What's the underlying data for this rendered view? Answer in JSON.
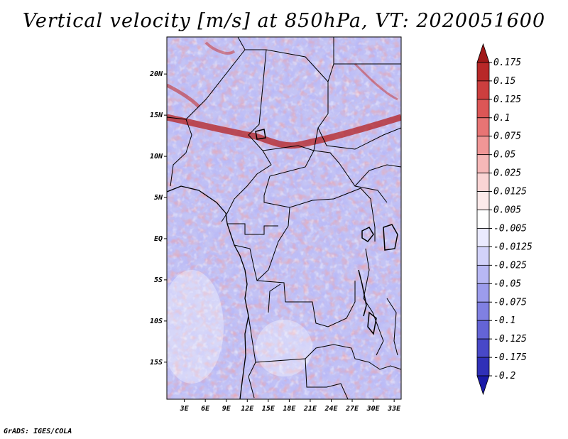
{
  "title": "Vertical velocity [m/s] at 850hPa, VT: 2020051600",
  "footer": "GrADS: IGES/COLA",
  "map": {
    "lat_range": [
      -19.5,
      24.5
    ],
    "lon_range": [
      0.5,
      34.0
    ],
    "lat_ticks": [
      {
        "value": 20,
        "label": "20N"
      },
      {
        "value": 15,
        "label": "15N"
      },
      {
        "value": 10,
        "label": "10N"
      },
      {
        "value": 5,
        "label": "5N"
      },
      {
        "value": 0,
        "label": "EQ"
      },
      {
        "value": -5,
        "label": "5S"
      },
      {
        "value": -10,
        "label": "10S"
      },
      {
        "value": -15,
        "label": "15S"
      }
    ],
    "lon_ticks": [
      {
        "value": 3,
        "label": "3E"
      },
      {
        "value": 6,
        "label": "6E"
      },
      {
        "value": 9,
        "label": "9E"
      },
      {
        "value": 12,
        "label": "12E"
      },
      {
        "value": 15,
        "label": "15E"
      },
      {
        "value": 18,
        "label": "18E"
      },
      {
        "value": 21,
        "label": "21E"
      },
      {
        "value": 24,
        "label": "24E"
      },
      {
        "value": 27,
        "label": "27E"
      },
      {
        "value": 30,
        "label": "30E"
      },
      {
        "value": 33,
        "label": "33E"
      }
    ]
  },
  "colorbar": {
    "labels": [
      "0.175",
      "0.15",
      "0.125",
      "0.1",
      "0.075",
      "0.05",
      "0.025",
      "0.0125",
      "0.005",
      "-0.005",
      "-0.0125",
      "-0.025",
      "-0.05",
      "-0.075",
      "-0.1",
      "-0.125",
      "-0.175",
      "-0.2"
    ],
    "colors": [
      "#a01818",
      "#b82828",
      "#cc3e3e",
      "#dc5656",
      "#e87474",
      "#f09696",
      "#f6b8b8",
      "#fad4d4",
      "#fdeaea",
      "#ffffff",
      "#eaeaff",
      "#d2d2fa",
      "#b8b8f4",
      "#9c9cec",
      "#8080e2",
      "#6464d6",
      "#4848c8",
      "#3030b8",
      "#1a1aa8"
    ]
  }
}
